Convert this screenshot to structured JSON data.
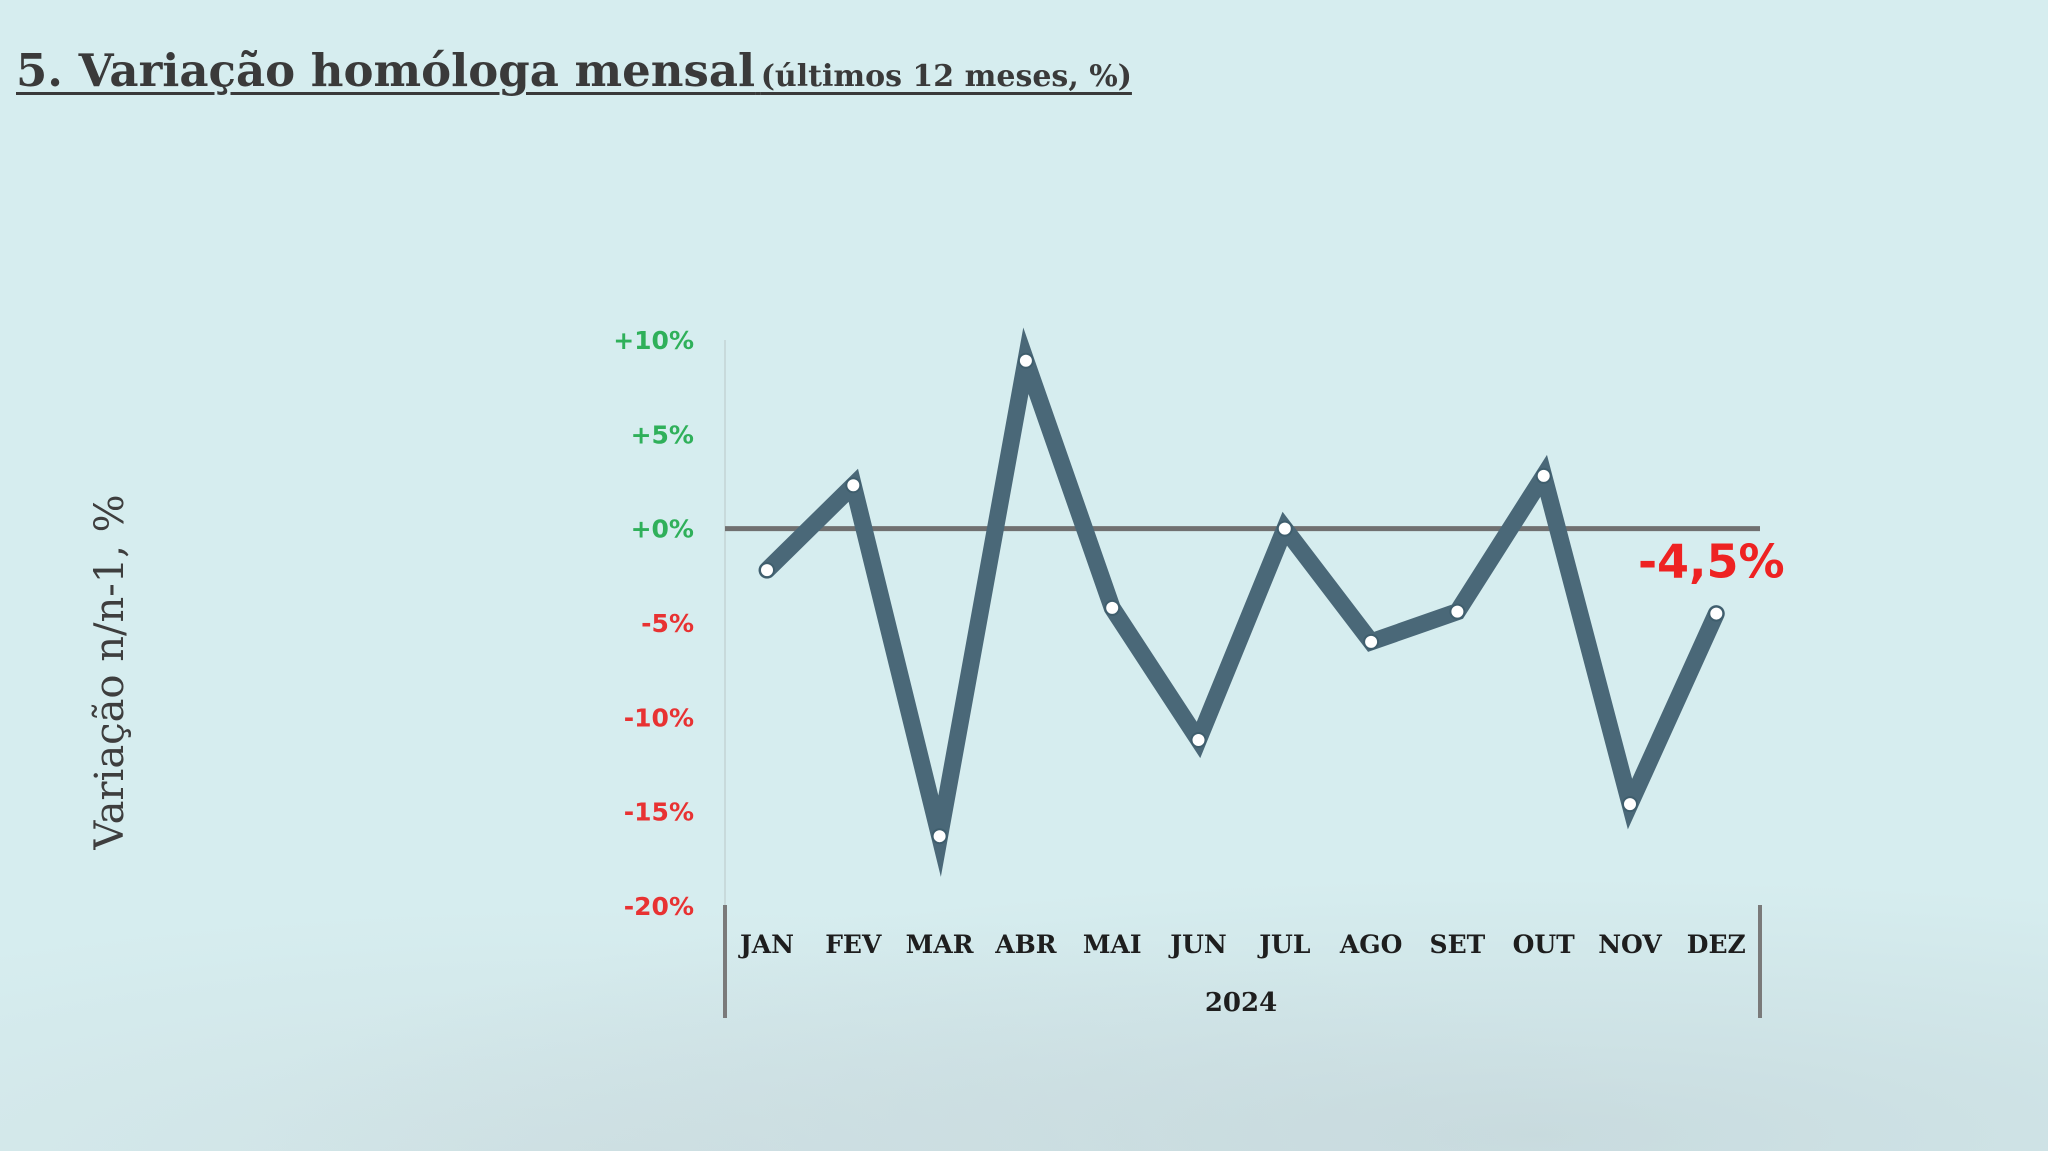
{
  "header": {
    "title": "5. Variação homóloga mensal",
    "subtitle": "(últimos 12 meses, %)"
  },
  "chart_data": {
    "type": "line",
    "ylabel": "Variação n/n-1, %",
    "xlabel": "2024",
    "categories": [
      "JAN",
      "FEV",
      "MAR",
      "ABR",
      "MAI",
      "JUN",
      "JUL",
      "AGO",
      "SET",
      "OUT",
      "NOV",
      "DEZ"
    ],
    "series": [
      {
        "values": [
          -2.2,
          2.3,
          -16.3,
          8.9,
          -4.2,
          -11.2,
          0.0,
          -6.0,
          -4.4,
          2.8,
          -14.6,
          -4.5
        ]
      }
    ],
    "ylim": [
      -20,
      10
    ],
    "yticks": [
      10,
      5,
      0,
      -5,
      -10,
      -15,
      -20
    ],
    "ytick_labels": [
      "+10%",
      "+5%",
      "+0%",
      "-5%",
      "-10%",
      "-15%",
      "-20%"
    ],
    "annotation": {
      "category": "DEZ",
      "text": "-4,5%"
    },
    "colors": {
      "line": "#4a6878",
      "zero_line": "#707070",
      "positive_tick": "#2fb05a",
      "negative_tick": "#e83232",
      "annotation": "#ee2222",
      "marker_fill": "#ffffff"
    },
    "grid": false
  }
}
